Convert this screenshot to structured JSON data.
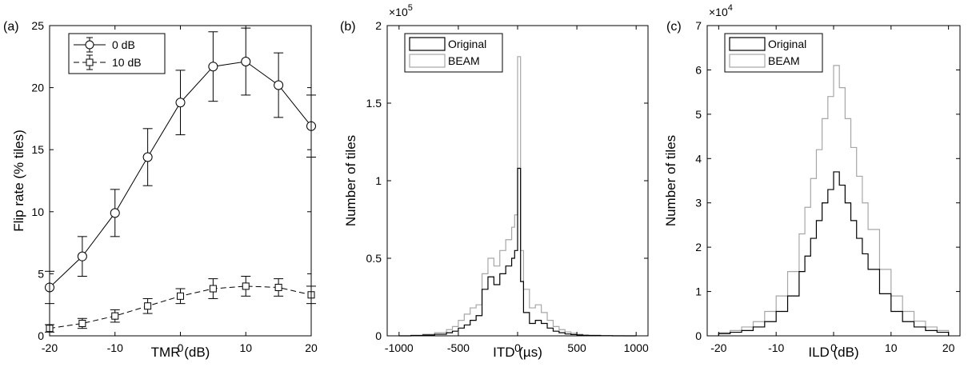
{
  "chart_data": [
    {
      "type": "line",
      "panel_label": "(a)",
      "xlabel": "TMR (dB)",
      "ylabel": "Flip rate (% tiles)",
      "xlim": [
        -20,
        20
      ],
      "ylim": [
        0,
        25
      ],
      "xticks": [
        -20,
        -10,
        0,
        10,
        20
      ],
      "yticks": [
        0,
        5,
        10,
        15,
        20,
        25
      ],
      "grid": false,
      "legend_position": "top-left",
      "x": [
        -20,
        -15,
        -10,
        -5,
        0,
        5,
        10,
        15,
        20
      ],
      "series": [
        {
          "name": "0 dB",
          "marker": "circle",
          "dash": "solid",
          "values": [
            3.9,
            6.4,
            9.9,
            14.4,
            18.8,
            21.7,
            22.1,
            20.2,
            16.9
          ],
          "err": [
            1.3,
            1.6,
            1.9,
            2.3,
            2.6,
            2.8,
            2.7,
            2.6,
            2.5
          ]
        },
        {
          "name": "10 dB",
          "marker": "square",
          "dash": "dashed",
          "values": [
            0.6,
            1.0,
            1.6,
            2.4,
            3.2,
            3.8,
            4.0,
            3.9,
            3.3
          ],
          "err": [
            0.3,
            0.4,
            0.5,
            0.6,
            0.6,
            0.8,
            0.8,
            0.7,
            0.7
          ]
        }
      ]
    },
    {
      "type": "area",
      "panel_label": "(b)",
      "xlabel": "ITD (µs)",
      "ylabel": "Number of tiles",
      "y_multiplier_base": "×10",
      "y_multiplier_exp": "5",
      "xlim": [
        -1100,
        1100
      ],
      "ylim": [
        0,
        2
      ],
      "xticks": [
        -1000,
        -500,
        0,
        500,
        1000
      ],
      "yticks": [
        0,
        0.5,
        1,
        1.5,
        2
      ],
      "grid": false,
      "legend_position": "top-left",
      "x": [
        -1000,
        -900,
        -800,
        -700,
        -600,
        -550,
        -500,
        -450,
        -400,
        -350,
        -300,
        -250,
        -200,
        -150,
        -100,
        -50,
        -25,
        0,
        25,
        50,
        100,
        150,
        200,
        250,
        300,
        350,
        400,
        450,
        500,
        550,
        600,
        700,
        800,
        900,
        1000
      ],
      "series": [
        {
          "name": "Original",
          "color": "#000000",
          "values": [
            0,
            0.002,
            0.005,
            0.01,
            0.02,
            0.03,
            0.05,
            0.07,
            0.1,
            0.13,
            0.3,
            0.38,
            0.33,
            0.4,
            0.45,
            0.5,
            0.55,
            1.08,
            0.35,
            0.15,
            0.08,
            0.1,
            0.08,
            0.05,
            0.03,
            0.02,
            0.012,
            0.008,
            0.005,
            0.003,
            0.002,
            0.001,
            0,
            0,
            0
          ]
        },
        {
          "name": "BEAM",
          "color": "#a6a6a6",
          "values": [
            0,
            0.004,
            0.01,
            0.02,
            0.04,
            0.06,
            0.1,
            0.14,
            0.18,
            0.2,
            0.4,
            0.5,
            0.45,
            0.55,
            0.62,
            0.7,
            0.78,
            1.8,
            0.55,
            0.3,
            0.18,
            0.2,
            0.15,
            0.1,
            0.06,
            0.04,
            0.025,
            0.016,
            0.01,
            0.006,
            0.004,
            0.002,
            0.001,
            0,
            0
          ]
        }
      ]
    },
    {
      "type": "area",
      "panel_label": "(c)",
      "xlabel": "ILD (dB)",
      "ylabel": "Number of tiles",
      "y_multiplier_base": "×10",
      "y_multiplier_exp": "4",
      "xlim": [
        -22,
        22
      ],
      "ylim": [
        0,
        7
      ],
      "xticks": [
        -20,
        -10,
        0,
        10,
        20
      ],
      "yticks": [
        0,
        1,
        2,
        3,
        4,
        5,
        6,
        7
      ],
      "grid": false,
      "legend_position": "top-left",
      "x": [
        -20,
        -18,
        -16,
        -14,
        -12,
        -10,
        -8,
        -6,
        -5,
        -4,
        -3,
        -2,
        -1,
        0,
        1,
        2,
        3,
        4,
        5,
        6,
        8,
        10,
        12,
        14,
        16,
        18,
        20
      ],
      "series": [
        {
          "name": "Original",
          "color": "#000000",
          "values": [
            0.05,
            0.08,
            0.12,
            0.2,
            0.32,
            0.55,
            0.9,
            1.45,
            1.8,
            2.2,
            2.6,
            3.0,
            3.3,
            3.7,
            3.4,
            3.0,
            2.6,
            2.2,
            1.85,
            1.5,
            0.95,
            0.55,
            0.32,
            0.2,
            0.12,
            0.08,
            0.05
          ]
        },
        {
          "name": "BEAM",
          "color": "#a6a6a6",
          "values": [
            0.07,
            0.12,
            0.2,
            0.32,
            0.55,
            0.9,
            1.45,
            2.3,
            2.9,
            3.55,
            4.2,
            4.9,
            5.4,
            6.1,
            5.6,
            4.9,
            4.25,
            3.6,
            3.0,
            2.4,
            1.5,
            0.9,
            0.55,
            0.33,
            0.2,
            0.12,
            0.07
          ]
        }
      ]
    }
  ]
}
